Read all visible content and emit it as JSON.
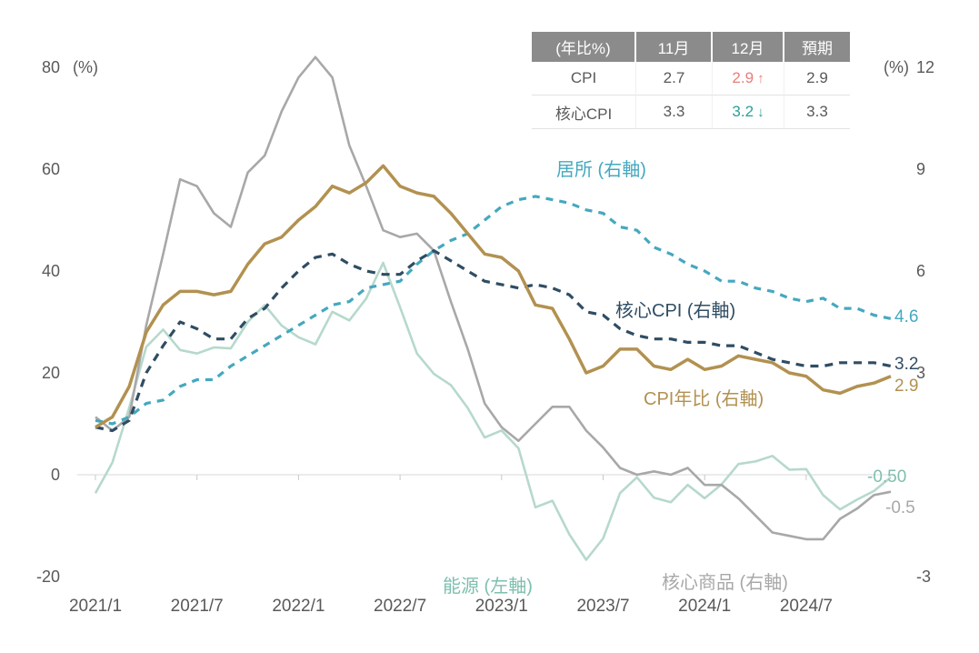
{
  "table": {
    "headers": [
      "(年比%)",
      "11月",
      "12月",
      "預期"
    ],
    "rows": [
      {
        "label": "CPI",
        "nov": "2.7",
        "dec": "2.9",
        "dec_arrow": "↑",
        "exp": "2.9"
      },
      {
        "label": "核心CPI",
        "nov": "3.3",
        "dec": "3.2",
        "dec_arrow": "↓",
        "exp": "3.3"
      }
    ]
  },
  "colors": {
    "up": "#e87e79",
    "down": "#2aa097",
    "shelter": "#45a8bf",
    "core_cpi": "#2f4d63",
    "cpi": "#b29150",
    "energy": "#b6d9cc",
    "energy_text": "#7dbfae",
    "core_goods": "#a8a8a8",
    "axis_text": "#595959",
    "axis_line": "#d8d8d8"
  },
  "chart_data": {
    "type": "line",
    "x_tick_labels": [
      "2021/1",
      "2021/7",
      "2022/1",
      "2022/7",
      "2023/1",
      "2023/7",
      "2024/1",
      "2024/7"
    ],
    "x_tick_month_index": [
      0,
      6,
      12,
      18,
      24,
      30,
      36,
      42
    ],
    "left_axis": {
      "unit": "(%)",
      "ticks": [
        80,
        60,
        40,
        20,
        0,
        -20
      ],
      "range": [
        -20,
        80
      ]
    },
    "right_axis": {
      "unit": "(%)",
      "ticks": [
        12,
        9,
        6,
        3,
        -3
      ],
      "range": [
        -3,
        12
      ]
    },
    "series": [
      {
        "id": "energy",
        "name": "能源 (左軸)",
        "axis": "left",
        "style": "solid",
        "color_key": "energy",
        "label_color_key": "energy_text",
        "end_label": "-0.50",
        "values": [
          -3.6,
          2.4,
          13.2,
          25.1,
          28.5,
          24.5,
          23.8,
          25.0,
          24.8,
          30.0,
          33.3,
          29.3,
          27.0,
          25.6,
          32.0,
          30.3,
          34.6,
          41.6,
          32.9,
          23.8,
          19.8,
          17.6,
          13.1,
          7.3,
          8.7,
          5.2,
          -6.4,
          -5.1,
          -11.7,
          -16.7,
          -12.5,
          -3.6,
          -0.5,
          -4.5,
          -5.4,
          -2.0,
          -4.6,
          -1.9,
          2.1,
          2.6,
          3.7,
          1.0,
          1.1,
          -4.0,
          -6.8,
          -4.9,
          -3.2,
          -0.5
        ]
      },
      {
        "id": "core_goods",
        "name": "核心商品 (右軸)",
        "axis": "right",
        "style": "solid",
        "color_key": "core_goods",
        "end_label": "-0.5",
        "values": [
          1.7,
          1.3,
          1.7,
          4.4,
          6.5,
          8.7,
          8.5,
          7.7,
          7.3,
          8.9,
          9.4,
          10.7,
          11.7,
          12.3,
          11.7,
          9.7,
          8.5,
          7.2,
          7.0,
          7.1,
          6.6,
          5.1,
          3.7,
          2.1,
          1.4,
          1.0,
          1.5,
          2.0,
          2.0,
          1.3,
          0.8,
          0.2,
          0.0,
          0.1,
          0.0,
          0.2,
          -0.3,
          -0.3,
          -0.7,
          -1.2,
          -1.7,
          -1.8,
          -1.9,
          -1.9,
          -1.3,
          -1.0,
          -0.6,
          -0.5
        ]
      },
      {
        "id": "shelter",
        "name": "居所 (右軸)",
        "axis": "right",
        "style": "dashed",
        "color_key": "shelter",
        "end_label": "4.6",
        "values": [
          1.6,
          1.5,
          1.7,
          2.1,
          2.2,
          2.6,
          2.8,
          2.8,
          3.2,
          3.5,
          3.8,
          4.1,
          4.4,
          4.7,
          5.0,
          5.1,
          5.5,
          5.6,
          5.7,
          6.2,
          6.6,
          6.9,
          7.1,
          7.5,
          7.9,
          8.1,
          8.2,
          8.1,
          8.0,
          7.8,
          7.7,
          7.3,
          7.2,
          6.7,
          6.5,
          6.2,
          6.0,
          5.7,
          5.7,
          5.5,
          5.4,
          5.2,
          5.1,
          5.2,
          4.9,
          4.9,
          4.7,
          4.6
        ]
      },
      {
        "id": "core_cpi",
        "name": "核心CPI (右軸)",
        "axis": "right",
        "style": "dashed",
        "color_key": "core_cpi",
        "end_label": "3.2",
        "values": [
          1.4,
          1.3,
          1.6,
          3.0,
          3.8,
          4.5,
          4.3,
          4.0,
          4.0,
          4.6,
          4.9,
          5.5,
          6.0,
          6.4,
          6.5,
          6.2,
          6.0,
          5.9,
          5.9,
          6.3,
          6.6,
          6.3,
          6.0,
          5.7,
          5.6,
          5.5,
          5.6,
          5.5,
          5.3,
          4.8,
          4.7,
          4.3,
          4.1,
          4.0,
          4.0,
          3.9,
          3.9,
          3.8,
          3.8,
          3.6,
          3.4,
          3.3,
          3.2,
          3.2,
          3.3,
          3.3,
          3.3,
          3.2
        ]
      },
      {
        "id": "cpi",
        "name": "CPI年比 (右軸)",
        "axis": "right",
        "style": "solid",
        "color_key": "cpi",
        "end_label": "2.9",
        "values": [
          1.4,
          1.7,
          2.6,
          4.2,
          5.0,
          5.4,
          5.4,
          5.3,
          5.4,
          6.2,
          6.8,
          7.0,
          7.5,
          7.9,
          8.5,
          8.3,
          8.6,
          9.1,
          8.5,
          8.3,
          8.2,
          7.7,
          7.1,
          6.5,
          6.4,
          6.0,
          5.0,
          4.9,
          4.0,
          3.0,
          3.2,
          3.7,
          3.7,
          3.2,
          3.1,
          3.4,
          3.1,
          3.2,
          3.5,
          3.4,
          3.3,
          3.0,
          2.9,
          2.5,
          2.4,
          2.6,
          2.7,
          2.9
        ]
      }
    ]
  }
}
